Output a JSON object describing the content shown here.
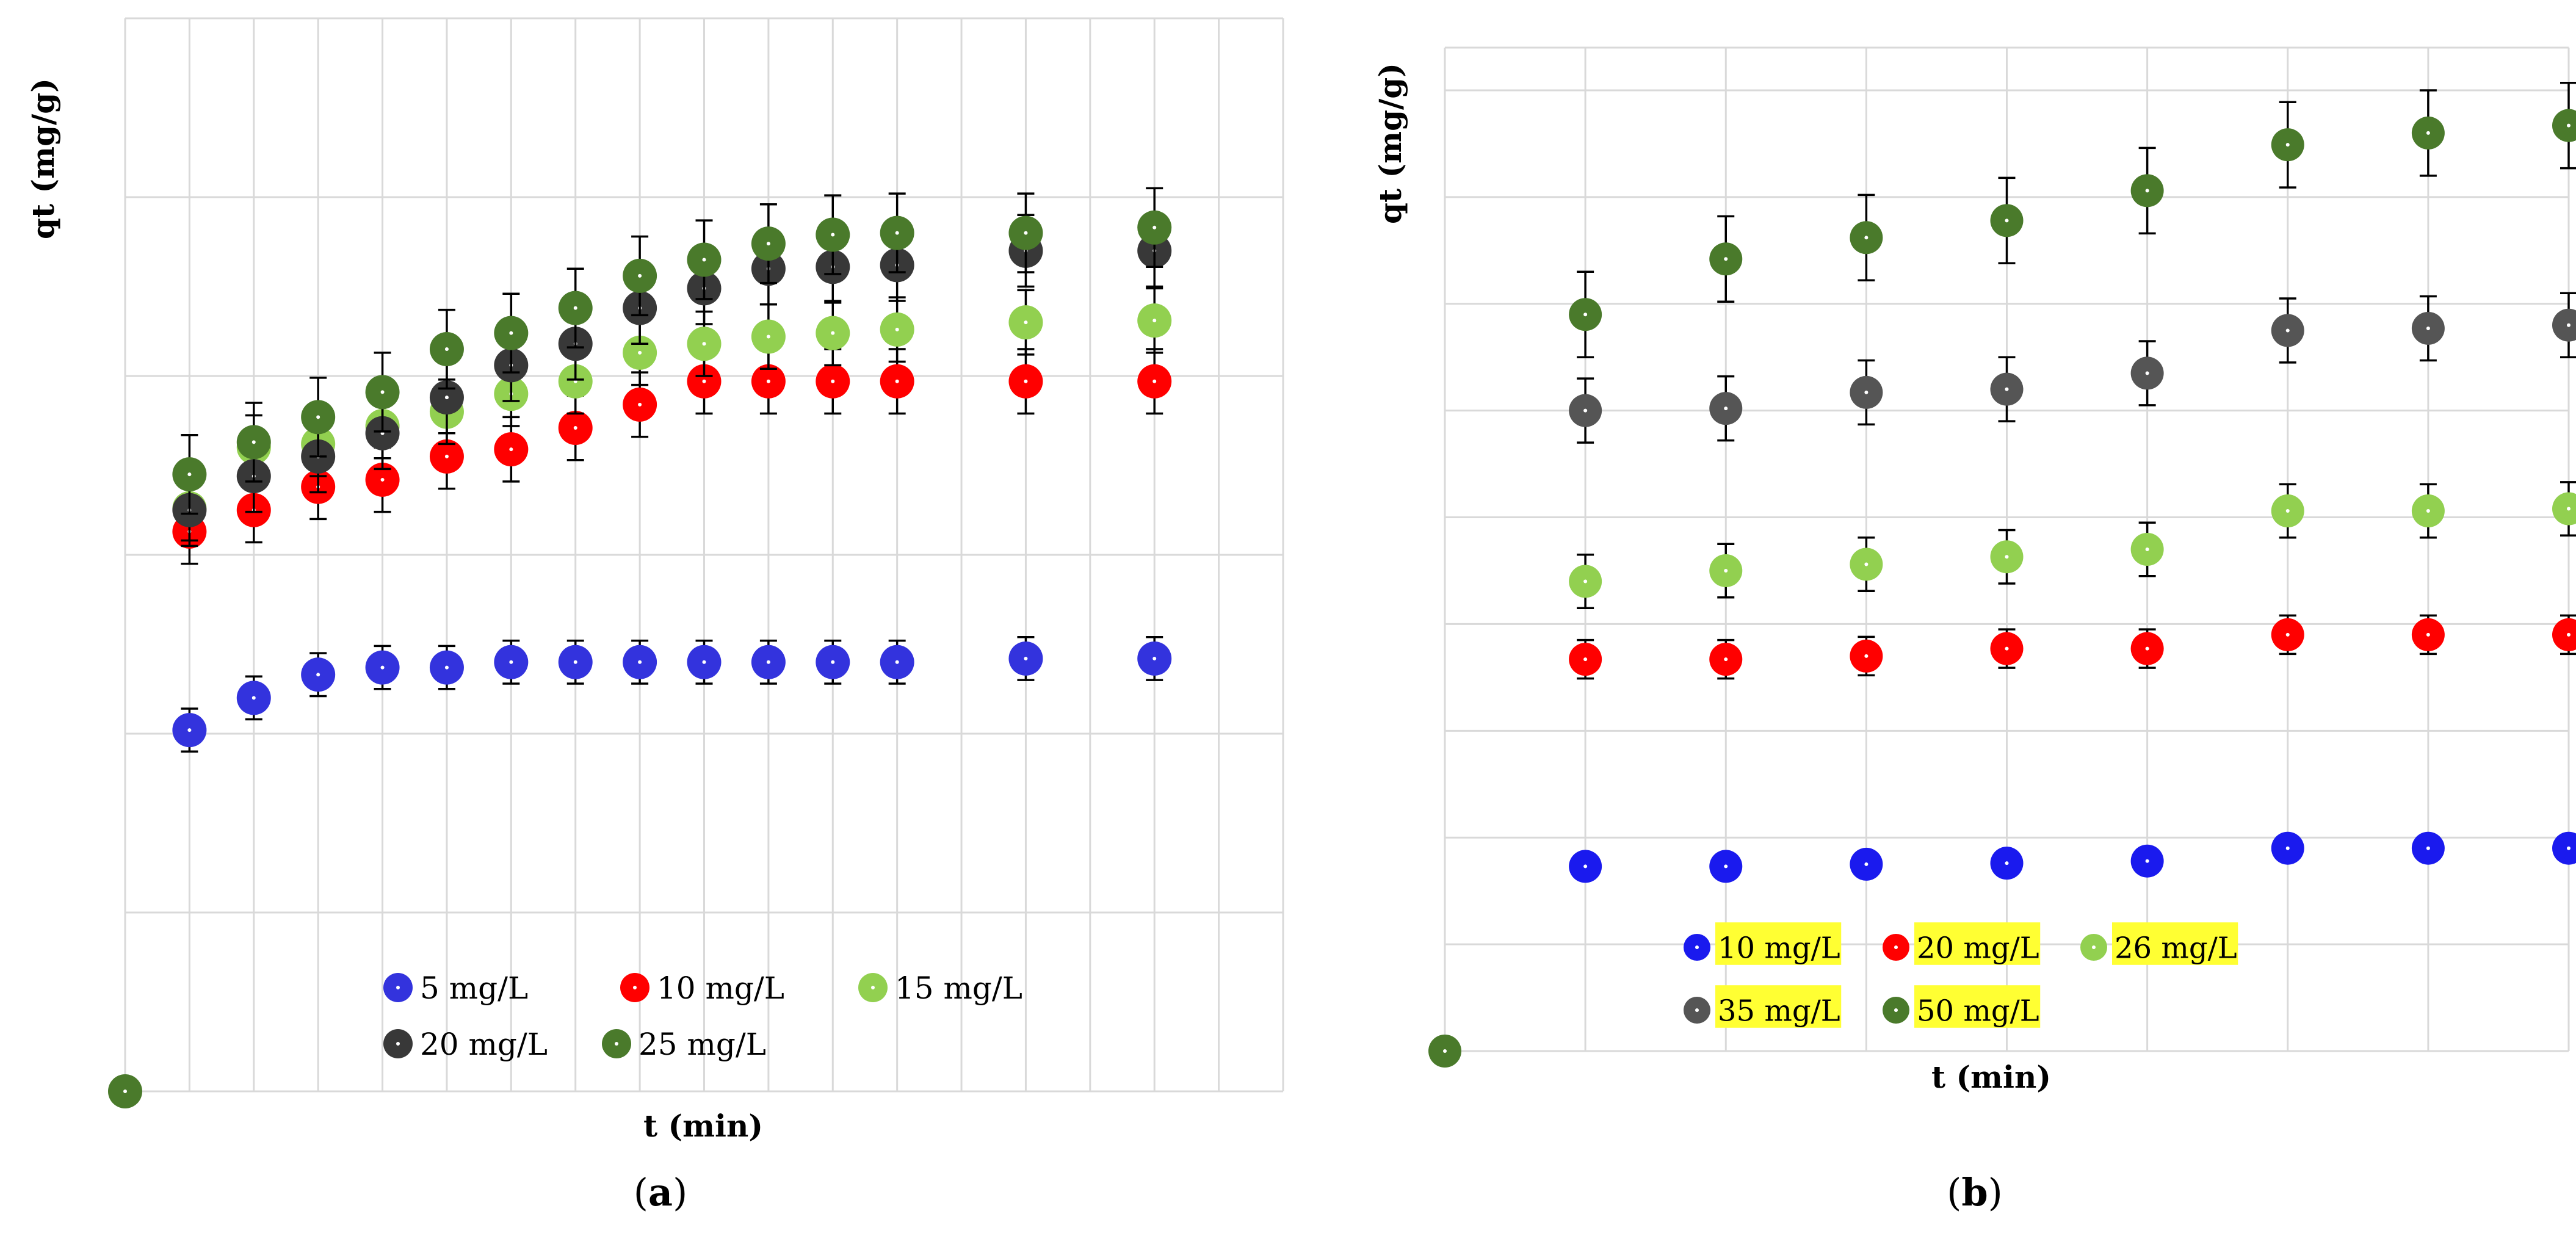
{
  "chart_data": [
    {
      "type": "scatter",
      "panel_label_prefix": "(",
      "panel_letter": "a",
      "panel_label_suffix": ")",
      "xlabel": "t (min)",
      "ylabel": "qt (mg/g)",
      "xlim": [
        0,
        18
      ],
      "ylim": [
        0,
        6
      ],
      "grid": true,
      "error_bars": true,
      "origin_marker_color": "#4a7a2b",
      "legend": {
        "placement": "lower-center",
        "highlight": false,
        "rows": [
          [
            "5 mg/L",
            "10 mg/L",
            "15 mg/L"
          ],
          [
            "20 mg/L",
            "25 mg/L"
          ]
        ]
      },
      "series": [
        {
          "name": "5 mg/L",
          "color": "#3333dd",
          "error": 0.12,
          "x": [
            1,
            2,
            3,
            4,
            5,
            6,
            7,
            8,
            9,
            10,
            11,
            12,
            14,
            16
          ],
          "values": [
            2.02,
            2.2,
            2.33,
            2.37,
            2.37,
            2.4,
            2.4,
            2.4,
            2.4,
            2.4,
            2.4,
            2.4,
            2.42,
            2.42
          ]
        },
        {
          "name": "10 mg/L",
          "color": "#ff0000",
          "error": 0.18,
          "x": [
            1,
            2,
            3,
            4,
            5,
            6,
            7,
            8,
            9,
            10,
            11,
            12,
            14,
            16
          ],
          "values": [
            3.13,
            3.25,
            3.38,
            3.42,
            3.55,
            3.59,
            3.71,
            3.84,
            3.97,
            3.97,
            3.97,
            3.97,
            3.97,
            3.97
          ]
        },
        {
          "name": "15 mg/L",
          "color": "#92d050",
          "error": 0.18,
          "x": [
            1,
            2,
            3,
            4,
            5,
            6,
            7,
            8,
            9,
            10,
            11,
            12,
            14,
            16
          ],
          "values": [
            3.26,
            3.6,
            3.62,
            3.72,
            3.8,
            3.9,
            3.97,
            4.13,
            4.18,
            4.22,
            4.24,
            4.26,
            4.3,
            4.31
          ]
        },
        {
          "name": "20 mg/L",
          "color": "#383838",
          "error": 0.2,
          "x": [
            1,
            2,
            3,
            4,
            5,
            6,
            7,
            8,
            9,
            10,
            11,
            12,
            14,
            16
          ],
          "values": [
            3.25,
            3.44,
            3.55,
            3.68,
            3.88,
            4.06,
            4.18,
            4.38,
            4.49,
            4.6,
            4.61,
            4.62,
            4.7,
            4.7
          ]
        },
        {
          "name": "25 mg/L",
          "color": "#4a7a2b",
          "error": 0.22,
          "x": [
            1,
            2,
            3,
            4,
            5,
            6,
            7,
            8,
            9,
            10,
            11,
            12,
            14,
            16
          ],
          "values": [
            3.45,
            3.63,
            3.77,
            3.91,
            4.15,
            4.24,
            4.38,
            4.56,
            4.65,
            4.74,
            4.79,
            4.8,
            4.8,
            4.83
          ]
        }
      ]
    },
    {
      "type": "scatter",
      "panel_label_prefix": "(",
      "panel_letter": "b",
      "panel_label_suffix": ")",
      "xlabel": "t (min)",
      "ylabel": "qt (mg/g)",
      "xlim": [
        0,
        8
      ],
      "ylim": [
        0,
        9.4
      ],
      "grid": true,
      "error_bars": true,
      "origin_marker_color": "#4a7a2b",
      "legend": {
        "placement": "lower-center",
        "highlight": true,
        "highlight_color": "#ffff33",
        "rows": [
          [
            "10 mg/L",
            "20 mg/L",
            "26 mg/L"
          ],
          [
            "35 mg/L",
            "50 mg/L"
          ]
        ]
      },
      "series": [
        {
          "name": "10 mg/L",
          "color": "#1a1aee",
          "error": 0.1,
          "x": [
            1,
            2,
            3,
            4,
            5,
            6,
            7,
            8
          ],
          "values": [
            1.73,
            1.73,
            1.75,
            1.76,
            1.78,
            1.9,
            1.9,
            1.9
          ]
        },
        {
          "name": "20 mg/L",
          "color": "#ff0000",
          "error": 0.18,
          "x": [
            1,
            2,
            3,
            4,
            5,
            6,
            7,
            8
          ],
          "values": [
            3.67,
            3.67,
            3.7,
            3.77,
            3.77,
            3.9,
            3.9,
            3.9
          ]
        },
        {
          "name": "26 mg/L",
          "color": "#92d050",
          "error": 0.25,
          "x": [
            1,
            2,
            3,
            4,
            5,
            6,
            7,
            8
          ],
          "values": [
            4.4,
            4.5,
            4.56,
            4.63,
            4.7,
            5.06,
            5.06,
            5.08
          ]
        },
        {
          "name": "35 mg/L",
          "color": "#555555",
          "error": 0.3,
          "x": [
            1,
            2,
            3,
            4,
            5,
            6,
            7,
            8
          ],
          "values": [
            6.0,
            6.02,
            6.17,
            6.2,
            6.35,
            6.75,
            6.77,
            6.8
          ]
        },
        {
          "name": "50 mg/L",
          "color": "#4a7a2b",
          "error": 0.4,
          "x": [
            1,
            2,
            3,
            4,
            5,
            6,
            7,
            8
          ],
          "values": [
            6.9,
            7.42,
            7.62,
            7.78,
            8.06,
            8.49,
            8.6,
            8.67
          ]
        }
      ]
    }
  ]
}
